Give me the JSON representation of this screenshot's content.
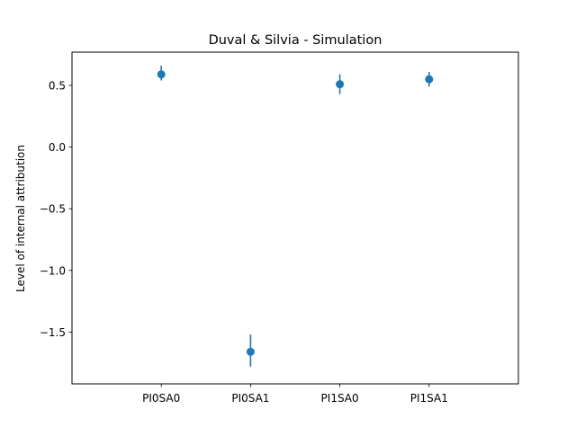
{
  "chart_data": {
    "type": "scatter",
    "title": "Duval & Silvia - Simulation",
    "xlabel": "",
    "ylabel": "Level of internal attribution",
    "categories": [
      "PI0SA0",
      "PI0SA1",
      "PI1SA0",
      "PI1SA1"
    ],
    "xlim": [
      -1,
      4
    ],
    "ylim": [
      -1.92,
      0.77
    ],
    "yticks": [
      0.5,
      0.0,
      -0.5,
      -1.0,
      -1.5
    ],
    "ytick_labels": [
      "0.5",
      "0.0",
      "−0.5",
      "−1.0",
      "−1.5"
    ],
    "grid": false,
    "series": [
      {
        "values": [
          0.59,
          -1.66,
          0.51,
          0.55
        ],
        "err_low": [
          0.54,
          -1.78,
          0.43,
          0.49
        ],
        "err_high": [
          0.66,
          -1.52,
          0.59,
          0.61
        ],
        "color": "#1f77b4"
      }
    ]
  }
}
